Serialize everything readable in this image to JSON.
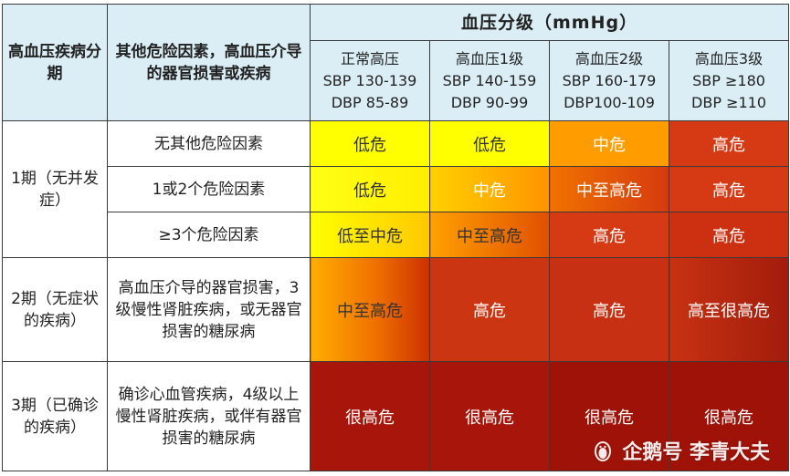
{
  "header": {
    "stage_col": "高血压疾病分期",
    "factors_col": "其他危险因素，高血压介导的器官损害或疾病",
    "bp_title": "血压分级（mmHg）",
    "grades": [
      {
        "name": "正常高压",
        "sbp": "SBP 130-139",
        "dbp": "DBP 85-89"
      },
      {
        "name": "高血压1级",
        "sbp": "SBP 140-159",
        "dbp": "DBP 90-99"
      },
      {
        "name": "高血压2级",
        "sbp": "SBP 160-179",
        "dbp": "DBP100-109"
      },
      {
        "name": "高血压3级",
        "sbp": "SBP ≥180",
        "dbp": "DBP ≥110"
      }
    ]
  },
  "stages": [
    {
      "label": "1期（无并发症）",
      "rows": [
        {
          "factor": "无其他危险因素",
          "risks": [
            "低危",
            "低危",
            "中危",
            "高危"
          ]
        },
        {
          "factor": "1或2个危险因素",
          "risks": [
            "低危",
            "中危",
            "中至高危",
            "高危"
          ]
        },
        {
          "factor": "≥3个危险因素",
          "risks": [
            "低至中危",
            "中至高危",
            "高危",
            "高危"
          ]
        }
      ]
    },
    {
      "label": "2期（无症状的疾病）",
      "rows": [
        {
          "factor": "高血压介导的器官损害，3级慢性肾脏疾病，或无器官损害的糖尿病",
          "risks": [
            "中至高危",
            "高危",
            "高危",
            "高至很高危"
          ]
        }
      ]
    },
    {
      "label": "3期（已确诊的疾病）",
      "rows": [
        {
          "factor": "确诊心血管疾病，4级以上慢性肾脏疾病，或伴有器官损害的糖尿病",
          "risks": [
            "很高危",
            "很高危",
            "很高危",
            "很高危"
          ]
        }
      ]
    }
  ],
  "watermark": {
    "text": "企鹅号 李青大夫",
    "icon": "penguin-icon"
  }
}
